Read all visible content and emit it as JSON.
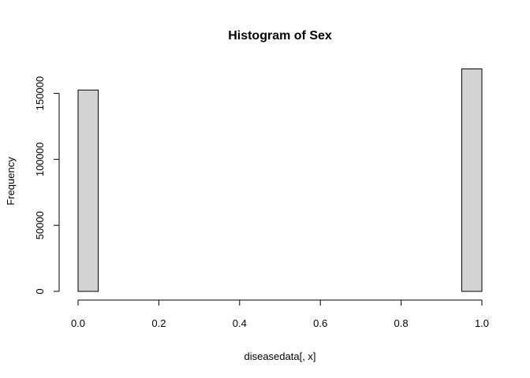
{
  "chart_data": {
    "type": "bar",
    "subtype": "histogram",
    "title": "Histogram of Sex",
    "xlabel": "diseasedata[, x]",
    "ylabel": "Frequency",
    "bin_width": 0.05,
    "bins": [
      {
        "x0": 0.0,
        "x1": 0.05,
        "count": 152500
      },
      {
        "x0": 0.05,
        "x1": 0.1,
        "count": 0
      },
      {
        "x0": 0.1,
        "x1": 0.15,
        "count": 0
      },
      {
        "x0": 0.15,
        "x1": 0.2,
        "count": 0
      },
      {
        "x0": 0.2,
        "x1": 0.25,
        "count": 0
      },
      {
        "x0": 0.25,
        "x1": 0.3,
        "count": 0
      },
      {
        "x0": 0.3,
        "x1": 0.35,
        "count": 0
      },
      {
        "x0": 0.35,
        "x1": 0.4,
        "count": 0
      },
      {
        "x0": 0.4,
        "x1": 0.45,
        "count": 0
      },
      {
        "x0": 0.45,
        "x1": 0.5,
        "count": 0
      },
      {
        "x0": 0.5,
        "x1": 0.55,
        "count": 0
      },
      {
        "x0": 0.55,
        "x1": 0.6,
        "count": 0
      },
      {
        "x0": 0.6,
        "x1": 0.65,
        "count": 0
      },
      {
        "x0": 0.65,
        "x1": 0.7,
        "count": 0
      },
      {
        "x0": 0.7,
        "x1": 0.75,
        "count": 0
      },
      {
        "x0": 0.75,
        "x1": 0.8,
        "count": 0
      },
      {
        "x0": 0.8,
        "x1": 0.85,
        "count": 0
      },
      {
        "x0": 0.85,
        "x1": 0.9,
        "count": 0
      },
      {
        "x0": 0.9,
        "x1": 0.95,
        "count": 0
      },
      {
        "x0": 0.95,
        "x1": 1.0,
        "count": 168500
      }
    ],
    "x_ticks": [
      {
        "value": 0.0,
        "label": "0.0"
      },
      {
        "value": 0.2,
        "label": "0.2"
      },
      {
        "value": 0.4,
        "label": "0.4"
      },
      {
        "value": 0.6,
        "label": "0.6"
      },
      {
        "value": 0.8,
        "label": "0.8"
      },
      {
        "value": 1.0,
        "label": "1.0"
      }
    ],
    "y_ticks": [
      {
        "value": 0,
        "label": "0"
      },
      {
        "value": 50000,
        "label": "50000"
      },
      {
        "value": 100000,
        "label": "100000"
      },
      {
        "value": 150000,
        "label": "150000"
      }
    ],
    "xlim": [
      0,
      1
    ],
    "ylim": [
      0,
      168500
    ],
    "grid": false,
    "legend": "none",
    "colors": {
      "bar_fill": "#d3d3d3",
      "bar_stroke": "#000000",
      "axis": "#000000",
      "text": "#000000"
    }
  }
}
